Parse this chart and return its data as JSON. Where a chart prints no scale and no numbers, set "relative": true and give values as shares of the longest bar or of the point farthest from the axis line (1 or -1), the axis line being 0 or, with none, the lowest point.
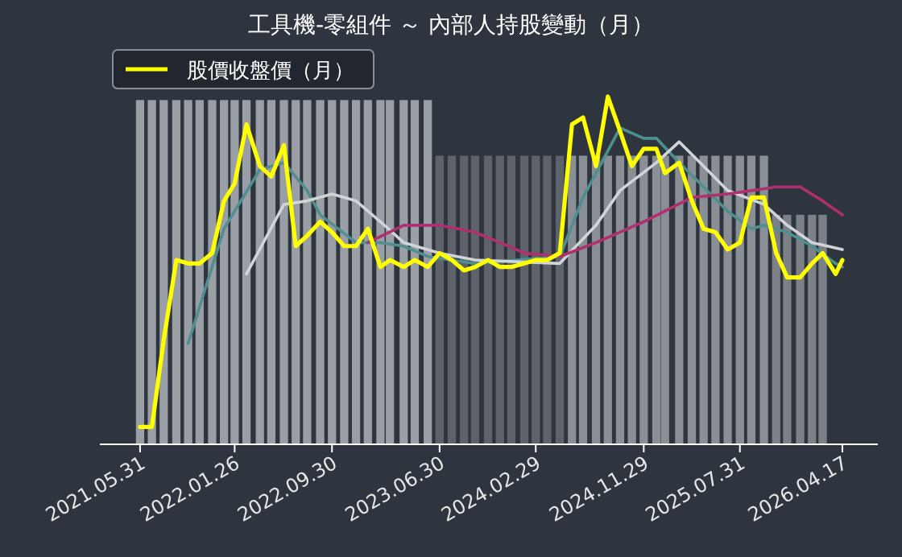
{
  "chart_data": {
    "type": "bar",
    "title": "工具機-零組件 ～ 內部人持股變動（月）",
    "relative": true,
    "legend": "top left",
    "xlim": [
      "2021-02-18",
      "2026-07-16"
    ],
    "xticks": [
      {
        "value": "2021-05-31",
        "label": "2021.05.31"
      },
      {
        "value": "2022-01-26",
        "label": "2022.01.26"
      },
      {
        "value": "2022-09-30",
        "label": "2022.09.30"
      },
      {
        "value": "2023-06-30",
        "label": "2023.06.30"
      },
      {
        "value": "2024-02-29",
        "label": "2024.02.29"
      },
      {
        "value": "2024-11-29",
        "label": "2024.11.29"
      },
      {
        "value": "2025-07-31",
        "label": "2025.07.31"
      },
      {
        "value": "2026-04-17",
        "label": "2026.04.17"
      }
    ],
    "x": [
      "2021-05-31",
      "2021-06-30",
      "2021-07-30",
      "2021-08-31",
      "2021-09-30",
      "2021-10-29",
      "2021-11-30",
      "2021-12-30",
      "2022-01-26",
      "2022-02-25",
      "2022-03-31",
      "2022-04-29",
      "2022-05-31",
      "2022-06-30",
      "2022-07-29",
      "2022-08-31",
      "2022-09-30",
      "2022-10-31",
      "2022-11-30",
      "2022-12-30",
      "2023-01-31",
      "2023-02-24",
      "2023-03-31",
      "2023-04-28",
      "2023-05-31",
      "2023-06-30",
      "2023-07-31",
      "2023-08-31",
      "2023-09-28",
      "2023-10-31",
      "2023-11-30",
      "2023-12-29",
      "2024-01-31",
      "2024-02-29",
      "2024-03-29",
      "2024-04-30",
      "2024-05-31",
      "2024-06-28",
      "2024-07-31",
      "2024-08-30",
      "2024-09-30",
      "2024-10-30",
      "2024-11-29",
      "2024-12-31",
      "2025-01-22",
      "2025-02-27",
      "2025-03-31",
      "2025-04-30",
      "2025-05-30",
      "2025-06-30",
      "2025-07-31",
      "2025-08-29",
      "2025-09-30",
      "2025-10-31",
      "2025-11-28",
      "2025-12-31",
      "2026-01-30",
      "2026-02-26",
      "2026-03-31",
      "2026-04-17"
    ],
    "series": [
      {
        "values": [
          0.99,
          0.99,
          0.99,
          0.99,
          0.99,
          0.99,
          0.99,
          0.99,
          0.99,
          0.99,
          0.99,
          0.99,
          0.99,
          0.99,
          0.99,
          0.99,
          0.99,
          0.99,
          0.99,
          0.99,
          0.99,
          0.99,
          0.99,
          0.99,
          0.99,
          0.83,
          0.83,
          0.83,
          0.83,
          0.83,
          0.83,
          0.83,
          0.83,
          0.83,
          0.83,
          0.83,
          0.83,
          0.83,
          0.83,
          0.83,
          0.83,
          0.83,
          0.83,
          0.83,
          0.83,
          0.83,
          0.83,
          0.83,
          0.83,
          0.83,
          0.83,
          0.83,
          0.83,
          0.66,
          0.66,
          0.66,
          0.66,
          0.66,
          null,
          null
        ],
        "colors": [
          "#9a9ea5",
          "#9a9ea5",
          "#9a9ea5",
          "#9a9ea5",
          "#9a9ea5",
          "#9a9ea5",
          "#9a9ea5",
          "#9a9ea5",
          "#9a9ea5",
          "#9a9ea5",
          "#9a9ea5",
          "#9a9ea5",
          "#9a9ea5",
          "#9a9ea5",
          "#9a9ea5",
          "#9a9ea5",
          "#9a9ea5",
          "#9a9ea5",
          "#9a9ea5",
          "#9a9ea5",
          "#9a9ea5",
          "#9a9ea5",
          "#9a9ea5",
          "#9a9ea5",
          "#9a9ea5",
          "#5e636b",
          "#5e636b",
          "#5e636b",
          "#5e636b",
          "#5e636b",
          "#5e636b",
          "#5e636b",
          "#5e636b",
          "#5e636b",
          "#5e636b",
          "#5e636b",
          "#8a8f96",
          "#8a8f96",
          "#8a8f96",
          "#8a8f96",
          "#8a8f96",
          "#8a8f96",
          "#8a8f96",
          "#8a8f96",
          "#8a8f96",
          "#8a8f96",
          "#8a8f96",
          "#8a8f96",
          "#8a8f96",
          "#8a8f96",
          "#8a8f96",
          "#8a8f96",
          "#8a8f96",
          "#7c8188",
          "#7c8188",
          "#7c8188",
          "#7c8188",
          "#7c8188",
          null,
          null
        ]
      },
      {
        "type": "line",
        "color": "#4f8f8f",
        "x": [
          "2021-09-30",
          "2021-12-30",
          "2022-03-31",
          "2022-05-31",
          "2022-07-29",
          "2022-08-31",
          "2022-11-30",
          "2023-01-31",
          "2023-03-31",
          "2023-05-31",
          "2023-09-28",
          "2024-04-30",
          "2024-06-28",
          "2024-09-30",
          "2024-11-29",
          "2024-12-31",
          "2025-02-27",
          "2025-04-30",
          "2025-06-30",
          "2025-08-29",
          "2025-09-30",
          "2025-11-28",
          "2026-01-30",
          "2026-03-31",
          "2026-04-17"
        ],
        "values": [
          0.29,
          0.62,
          0.79,
          0.81,
          0.73,
          0.66,
          0.58,
          0.58,
          0.57,
          0.54,
          0.52,
          0.54,
          0.71,
          0.91,
          0.88,
          0.88,
          0.81,
          0.74,
          0.67,
          0.62,
          0.63,
          0.61,
          0.57,
          0.52,
          0.51
        ]
      },
      {
        "type": "line",
        "color": "#d2d5d8",
        "x": [
          "2022-02-25",
          "2022-05-31",
          "2022-07-29",
          "2022-09-30",
          "2022-11-30",
          "2023-01-31",
          "2023-03-31",
          "2023-06-30",
          "2023-09-28",
          "2024-04-30",
          "2024-07-31",
          "2024-09-30",
          "2024-12-31",
          "2025-02-27",
          "2025-04-30",
          "2025-06-30",
          "2025-09-30",
          "2025-11-28",
          "2026-01-30",
          "2026-04-17"
        ],
        "values": [
          0.49,
          0.69,
          0.7,
          0.72,
          0.7,
          0.64,
          0.58,
          0.55,
          0.53,
          0.52,
          0.63,
          0.73,
          0.81,
          0.87,
          0.8,
          0.73,
          0.69,
          0.63,
          0.58,
          0.56
        ]
      },
      {
        "type": "line",
        "color": "#b0306e",
        "x": [
          "2022-12-30",
          "2023-03-31",
          "2023-06-30",
          "2023-09-28",
          "2023-11-30",
          "2024-01-31",
          "2024-04-30",
          "2024-07-31",
          "2024-11-29",
          "2025-03-31",
          "2025-06-30",
          "2025-10-31",
          "2025-12-31",
          "2026-02-26",
          "2026-04-17"
        ],
        "values": [
          0.58,
          0.63,
          0.63,
          0.61,
          0.58,
          0.55,
          0.54,
          0.58,
          0.64,
          0.71,
          0.72,
          0.74,
          0.74,
          0.7,
          0.66
        ]
      },
      {
        "type": "line",
        "name": "股價收盤價（月）",
        "color": "#ffff00",
        "values": [
          0.05,
          0.05,
          0.3,
          0.53,
          0.52,
          0.52,
          0.55,
          0.7,
          0.75,
          0.92,
          0.8,
          0.77,
          0.86,
          0.57,
          0.6,
          0.64,
          0.61,
          0.57,
          0.57,
          0.62,
          0.51,
          0.53,
          0.51,
          0.53,
          0.51,
          0.55,
          0.53,
          0.5,
          0.51,
          0.53,
          0.51,
          0.51,
          0.52,
          0.53,
          0.53,
          0.55,
          0.92,
          0.94,
          0.8,
          1,
          0.9,
          0.8,
          0.85,
          0.85,
          0.78,
          0.81,
          0.7,
          0.62,
          0.61,
          0.56,
          0.58,
          0.71,
          0.71,
          0.55,
          0.48,
          0.48,
          0.52,
          0.55,
          0.49,
          0.53
        ]
      }
    ]
  }
}
